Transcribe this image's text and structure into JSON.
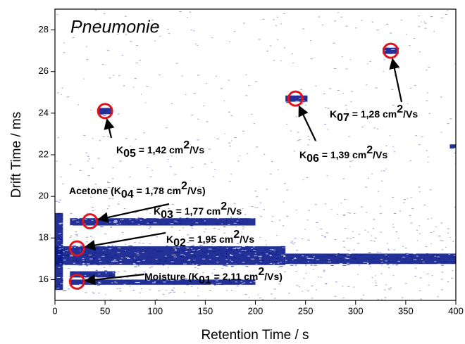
{
  "chart_data": {
    "type": "heatmap",
    "title": "Pneumonie",
    "x_label": "Retention Time / s",
    "y_label": "Drift Time / ms",
    "xlim": [
      0,
      400
    ],
    "ylim": [
      15,
      29
    ],
    "xticks": [
      0,
      50,
      100,
      150,
      200,
      250,
      300,
      350,
      400
    ],
    "yticks": [
      16,
      18,
      20,
      22,
      24,
      26,
      28
    ],
    "color": "#0a1a8c",
    "bands": [
      {
        "x": [
          0,
          230
        ],
        "y": [
          16.7,
          17.6
        ]
      },
      {
        "x": [
          230,
          400
        ],
        "y": [
          16.75,
          17.25
        ]
      },
      {
        "x": [
          15,
          200
        ],
        "y": [
          18.6,
          18.95
        ]
      },
      {
        "x": [
          15,
          200
        ],
        "y": [
          15.75,
          16.0
        ]
      },
      {
        "x": [
          15,
          60
        ],
        "y": [
          16.1,
          16.4
        ]
      },
      {
        "x": [
          0,
          8
        ],
        "y": [
          15.5,
          19.2
        ]
      },
      {
        "x": [
          44,
          56
        ],
        "y": [
          23.95,
          24.25
        ]
      },
      {
        "x": [
          230,
          252
        ],
        "y": [
          24.55,
          24.85
        ]
      },
      {
        "x": [
          327,
          343
        ],
        "y": [
          26.85,
          27.15
        ]
      },
      {
        "x": [
          394,
          400
        ],
        "y": [
          22.3,
          22.5
        ]
      }
    ],
    "annotations": [
      {
        "parts": [
          "K",
          "05",
          " = 1,42 cm",
          "2",
          "/Vs"
        ],
        "peak": [
          50,
          24.1
        ]
      },
      {
        "parts": [
          "K",
          "06",
          " = 1,39 cm",
          "2",
          "/Vs"
        ],
        "peak": [
          240,
          24.7
        ]
      },
      {
        "parts": [
          "K",
          "07",
          " = 1,28 cm",
          "2",
          "/Vs"
        ],
        "peak": [
          335,
          27.0
        ]
      },
      {
        "parts": [
          "Acetone (K",
          "04",
          " = 1,78 cm",
          "2",
          "/Vs)"
        ]
      },
      {
        "parts": [
          "K",
          "03",
          " = 1,77 cm",
          "2",
          "/Vs"
        ],
        "peak": [
          35,
          18.8
        ]
      },
      {
        "parts": [
          "K",
          "02",
          " = 1,95 cm",
          "2",
          "/Vs"
        ],
        "peak": [
          22,
          17.5
        ]
      },
      {
        "parts": [
          "Moisture (K",
          "01",
          " = 2,11 cm",
          "2",
          "/Vs)"
        ],
        "peak": [
          22,
          15.9
        ]
      }
    ]
  }
}
